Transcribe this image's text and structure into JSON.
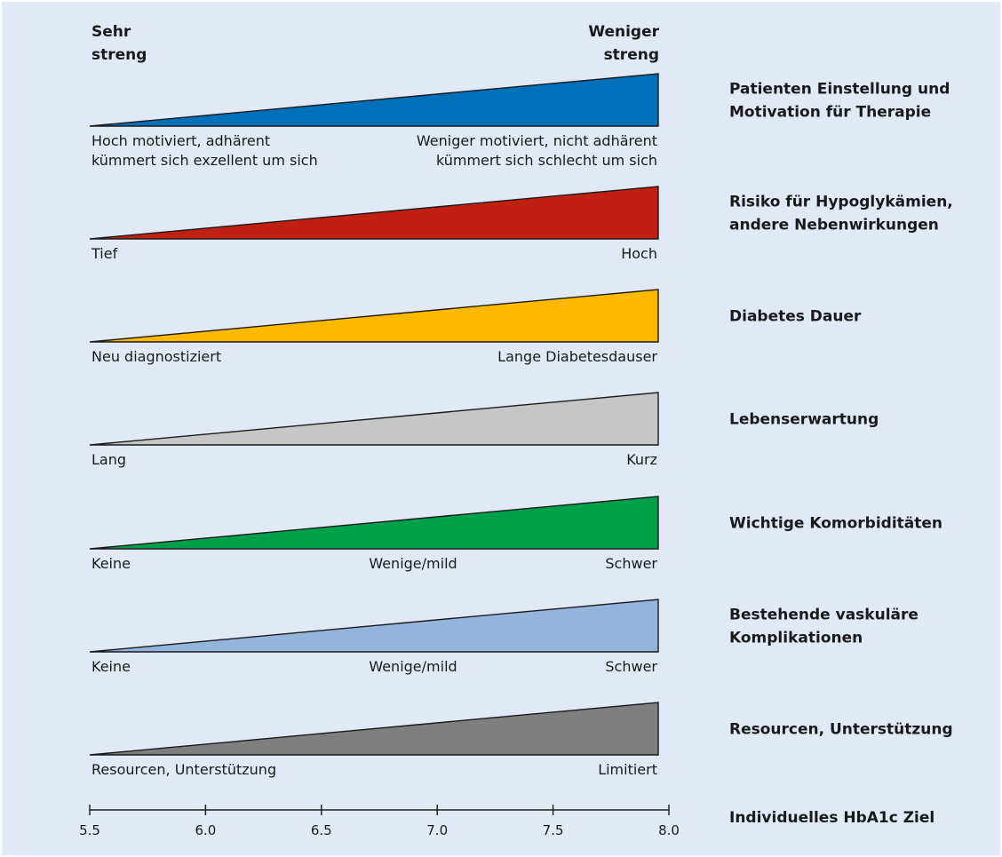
{
  "header": {
    "left_line1": "Sehr",
    "left_line2": "streng",
    "right_line1": "Weniger",
    "right_line2": "streng"
  },
  "rows": [
    {
      "color": "#0070b8",
      "category": [
        "Patienten Einstellung und",
        "Motivation für Therapie"
      ],
      "left": [
        "Hoch motiviert, adhärent",
        "kümmert sich exzellent um sich"
      ],
      "middle": [],
      "right": [
        "Weniger motiviert, nicht adhärent",
        "kümmert sich schlecht um sich"
      ]
    },
    {
      "color": "#c02012",
      "category": [
        "Risiko für Hypoglykämien,",
        "andere Nebenwirkungen"
      ],
      "left": [
        "Tief"
      ],
      "middle": [],
      "right": [
        "Hoch"
      ]
    },
    {
      "color": "#fdb900",
      "category": [
        "Diabetes Dauer"
      ],
      "left": [
        "Neu diagnostiziert"
      ],
      "middle": [],
      "right": [
        "Lange Diabetesdauser"
      ]
    },
    {
      "color": "#c5c6c5",
      "category": [
        "Lebenserwartung"
      ],
      "left": [
        "Lang"
      ],
      "middle": [],
      "right": [
        "Kurz"
      ]
    },
    {
      "color": "#00a04b",
      "category": [
        "Wichtige Komorbiditäten"
      ],
      "left": [
        "Keine"
      ],
      "middle": [
        "Wenige/mild"
      ],
      "right": [
        "Schwer"
      ]
    },
    {
      "color": "#94b4de",
      "category": [
        "Bestehende vaskuläre",
        "Komplikationen"
      ],
      "left": [
        "Keine"
      ],
      "middle": [
        "Wenige/mild"
      ],
      "right": [
        "Schwer"
      ]
    },
    {
      "color": "#7f7f7f",
      "category": [
        "Resourcen, Unterstützung"
      ],
      "left": [
        "Resourcen, Unterstützung"
      ],
      "middle": [],
      "right": [
        "Limitiert"
      ]
    }
  ],
  "axis": {
    "label": "Individuelles HbA1c Ziel",
    "min": 5.5,
    "max": 8.0,
    "ticks": [
      "5.5",
      "6.0",
      "6.5",
      "7.0",
      "7.5",
      "8.0"
    ]
  },
  "colors": {
    "background": "#e1e9f7",
    "outline": "#1a1a1a"
  }
}
